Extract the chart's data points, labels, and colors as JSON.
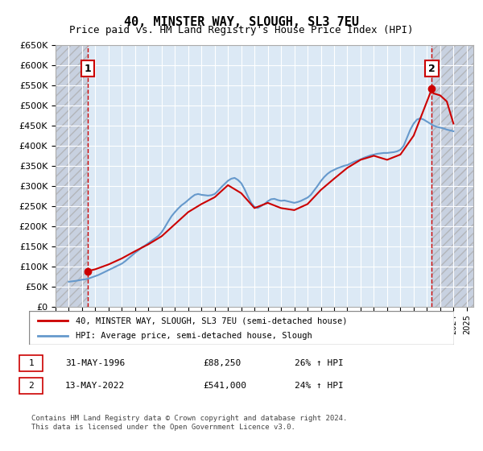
{
  "title": "40, MINSTER WAY, SLOUGH, SL3 7EU",
  "subtitle": "Price paid vs. HM Land Registry's House Price Index (HPI)",
  "xlabel": "",
  "ylabel": "",
  "ylim": [
    0,
    650000
  ],
  "yticks": [
    0,
    50000,
    100000,
    150000,
    200000,
    250000,
    300000,
    350000,
    400000,
    450000,
    500000,
    550000,
    600000,
    650000
  ],
  "xlim_start": 1994.0,
  "xlim_end": 2025.5,
  "sale1_date": 1996.42,
  "sale1_price": 88250,
  "sale2_date": 2022.37,
  "sale2_price": 541000,
  "sale1_label": "1",
  "sale2_label": "2",
  "hpi_color": "#6699cc",
  "price_color": "#cc0000",
  "vline_color": "#cc0000",
  "bg_color": "#dce9f5",
  "hatch_color": "#c0c8d8",
  "legend_label1": "40, MINSTER WAY, SLOUGH, SL3 7EU (semi-detached house)",
  "legend_label2": "HPI: Average price, semi-detached house, Slough",
  "table_row1": [
    "1",
    "31-MAY-1996",
    "£88,250",
    "26% ↑ HPI"
  ],
  "table_row2": [
    "2",
    "13-MAY-2022",
    "£541,000",
    "24% ↑ HPI"
  ],
  "footer": "Contains HM Land Registry data © Crown copyright and database right 2024.\nThis data is licensed under the Open Government Licence v3.0.",
  "hpi_data_years": [
    1995.0,
    1995.25,
    1995.5,
    1995.75,
    1996.0,
    1996.25,
    1996.5,
    1996.75,
    1997.0,
    1997.25,
    1997.5,
    1997.75,
    1998.0,
    1998.25,
    1998.5,
    1998.75,
    1999.0,
    1999.25,
    1999.5,
    1999.75,
    2000.0,
    2000.25,
    2000.5,
    2000.75,
    2001.0,
    2001.25,
    2001.5,
    2001.75,
    2002.0,
    2002.25,
    2002.5,
    2002.75,
    2003.0,
    2003.25,
    2003.5,
    2003.75,
    2004.0,
    2004.25,
    2004.5,
    2004.75,
    2005.0,
    2005.25,
    2005.5,
    2005.75,
    2006.0,
    2006.25,
    2006.5,
    2006.75,
    2007.0,
    2007.25,
    2007.5,
    2007.75,
    2008.0,
    2008.25,
    2008.5,
    2008.75,
    2009.0,
    2009.25,
    2009.5,
    2009.75,
    2010.0,
    2010.25,
    2010.5,
    2010.75,
    2011.0,
    2011.25,
    2011.5,
    2011.75,
    2012.0,
    2012.25,
    2012.5,
    2012.75,
    2013.0,
    2013.25,
    2013.5,
    2013.75,
    2014.0,
    2014.25,
    2014.5,
    2014.75,
    2015.0,
    2015.25,
    2015.5,
    2015.75,
    2016.0,
    2016.25,
    2016.5,
    2016.75,
    2017.0,
    2017.25,
    2017.5,
    2017.75,
    2018.0,
    2018.25,
    2018.5,
    2018.75,
    2019.0,
    2019.25,
    2019.5,
    2019.75,
    2020.0,
    2020.25,
    2020.5,
    2020.75,
    2021.0,
    2021.25,
    2021.5,
    2021.75,
    2022.0,
    2022.25,
    2022.5,
    2022.75,
    2023.0,
    2023.25,
    2023.5,
    2023.75,
    2024.0
  ],
  "hpi_data_values": [
    62000,
    63000,
    64000,
    65500,
    67000,
    68000,
    70000,
    73000,
    76000,
    79000,
    83000,
    87000,
    91000,
    95000,
    99000,
    103000,
    107000,
    113000,
    120000,
    127000,
    134000,
    140000,
    147000,
    152000,
    158000,
    164000,
    170000,
    176000,
    185000,
    198000,
    212000,
    225000,
    235000,
    244000,
    252000,
    258000,
    265000,
    272000,
    278000,
    280000,
    278000,
    277000,
    276000,
    277000,
    280000,
    288000,
    297000,
    305000,
    313000,
    318000,
    320000,
    315000,
    307000,
    292000,
    274000,
    258000,
    248000,
    245000,
    250000,
    255000,
    262000,
    267000,
    268000,
    265000,
    263000,
    264000,
    262000,
    260000,
    258000,
    260000,
    263000,
    267000,
    271000,
    278000,
    289000,
    300000,
    312000,
    322000,
    330000,
    336000,
    340000,
    344000,
    347000,
    350000,
    352000,
    356000,
    360000,
    363000,
    366000,
    370000,
    373000,
    376000,
    378000,
    380000,
    381000,
    382000,
    382000,
    383000,
    384000,
    386000,
    390000,
    400000,
    420000,
    440000,
    455000,
    465000,
    468000,
    465000,
    460000,
    455000,
    450000,
    447000,
    445000,
    443000,
    440000,
    438000,
    436000
  ],
  "price_line_years": [
    1996.42,
    1997.0,
    1998.0,
    1999.0,
    2000.0,
    2001.0,
    2002.0,
    2003.0,
    2004.0,
    2005.0,
    2006.0,
    2007.0,
    2008.0,
    2009.0,
    2010.0,
    2011.0,
    2012.0,
    2013.0,
    2014.0,
    2015.0,
    2016.0,
    2017.0,
    2018.0,
    2019.0,
    2020.0,
    2021.0,
    2022.37,
    2022.5,
    2023.0,
    2023.5,
    2024.0
  ],
  "price_line_values": [
    88250,
    93000,
    105000,
    120000,
    138000,
    155000,
    175000,
    205000,
    235000,
    255000,
    272000,
    302000,
    282000,
    245000,
    258000,
    245000,
    240000,
    255000,
    290000,
    318000,
    345000,
    365000,
    375000,
    365000,
    378000,
    425000,
    541000,
    530000,
    525000,
    510000,
    455000
  ]
}
